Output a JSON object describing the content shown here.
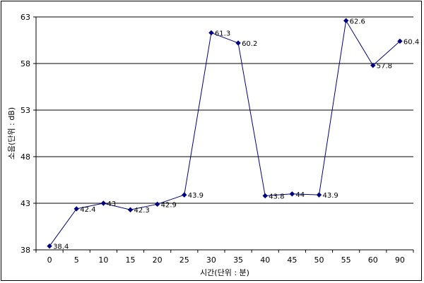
{
  "chart_data": {
    "type": "line",
    "title": "",
    "xlabel": "시간(단위 : 분)",
    "ylabel": "소음(단위 : dB)",
    "categories": [
      "0",
      "5",
      "10",
      "15",
      "20",
      "25",
      "30",
      "35",
      "40",
      "45",
      "50",
      "55",
      "60",
      "90"
    ],
    "series": [
      {
        "values": [
          38.4,
          42.4,
          43,
          42.3,
          42.9,
          43.9,
          61.3,
          60.2,
          43.8,
          44,
          43.9,
          62.6,
          57.8,
          60.4
        ],
        "labels": [
          "38.4",
          "42.4",
          "43",
          "42.3",
          "42.9",
          "43.9",
          "61.3",
          "60.2",
          "43.8",
          "44",
          "43.9",
          "62.6",
          "57.8",
          "60.4"
        ],
        "color": "#000080"
      }
    ],
    "ylim": [
      38,
      63
    ],
    "yticks": [
      38,
      43,
      48,
      53,
      58,
      63
    ],
    "ytick_labels": [
      "38",
      "43",
      "48",
      "53",
      "58",
      "63"
    ],
    "grid": "horizontal",
    "legend": "none"
  }
}
